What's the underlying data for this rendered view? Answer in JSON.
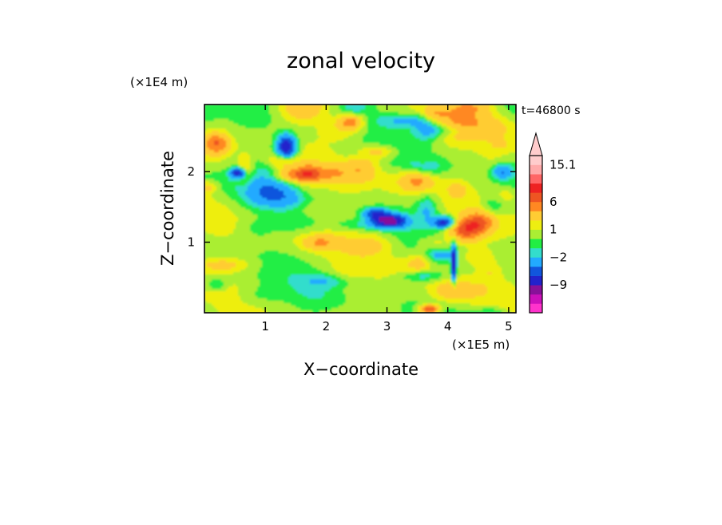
{
  "chart_data": {
    "type": "heatmap",
    "title": "zonal velocity",
    "xlabel": "X−coordinate",
    "ylabel": "Z−coordinate",
    "x_scale_label": "(×1E5 m)",
    "y_scale_label": "(×1E4 m)",
    "time_label": "t=46800 s",
    "xlim": [
      0,
      5.12
    ],
    "ylim": [
      0,
      2.95
    ],
    "x_ticks": [
      1,
      2,
      3,
      4,
      5
    ],
    "y_ticks": [
      1,
      2
    ],
    "x_tick_labels": [
      "1",
      "2",
      "3",
      "4",
      "5"
    ],
    "y_tick_labels": [
      "1",
      "2"
    ],
    "colorbar": {
      "levels": [
        -15,
        -12,
        -9,
        -6,
        -4,
        -2,
        -1,
        0,
        1,
        2,
        4,
        6,
        8,
        10,
        12,
        15.1
      ],
      "colors": [
        "#ff33cc",
        "#cc11bb",
        "#881199",
        "#2222cc",
        "#1155dd",
        "#22aaff",
        "#33ddcc",
        "#22ee44",
        "#aaee33",
        "#eeee11",
        "#ffcc33",
        "#ff8822",
        "#ee5522",
        "#ee2222",
        "#ff6666",
        "#ffaaaa",
        "#ffcccc"
      ],
      "labeled_ticks": [
        {
          "value": 15.1,
          "label": "15.1"
        },
        {
          "value": 6,
          "label": "6"
        },
        {
          "value": 1,
          "label": "1"
        },
        {
          "value": -2,
          "label": "−2"
        },
        {
          "value": -9,
          "label": "−9"
        }
      ],
      "extend": "max"
    },
    "grid": false,
    "legend": "colorbar-right"
  }
}
